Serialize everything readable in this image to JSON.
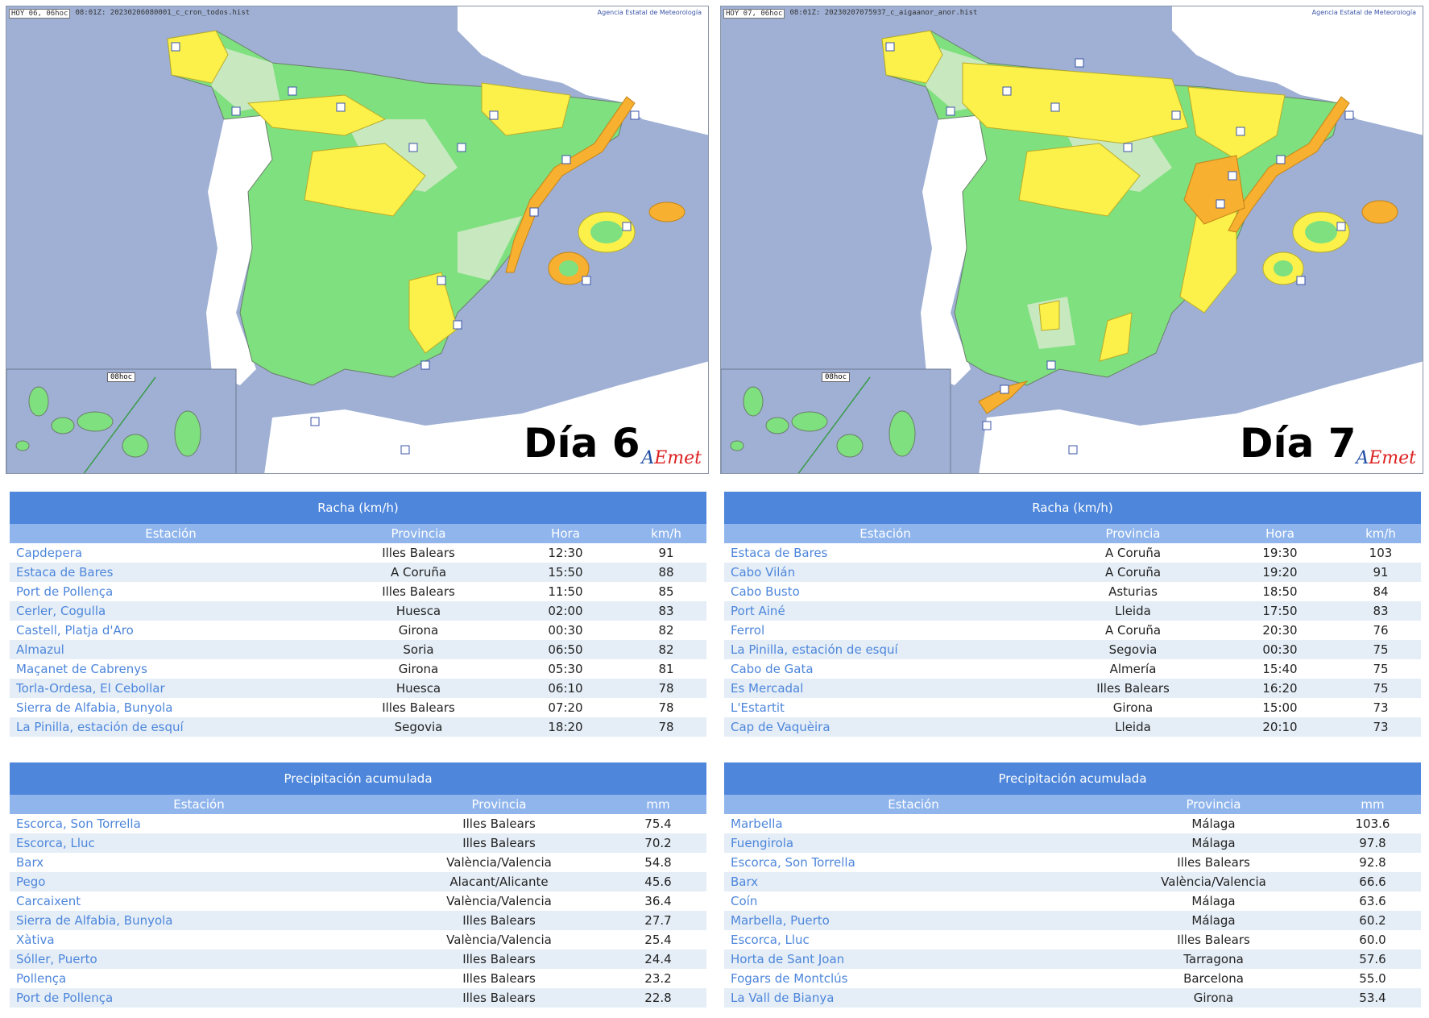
{
  "maps": [
    {
      "header_tag": "HOY 06, 06hoc",
      "header_file": "08:01Z: 20230206080001_c_cron_todos.hist",
      "agency": "Agencia Estatal de Meteorología",
      "canarias_label": "08hoc",
      "day": "Día 6",
      "logo_a": "A",
      "logo_em": "Emet"
    },
    {
      "header_tag": "HOY 07, 06hoc",
      "header_file": "08:01Z: 20230207075937_c_aigaanor_anor.hist",
      "agency": "Agencia Estatal de Meteorología",
      "canarias_label": "08hoc",
      "day": "Día 7",
      "logo_a": "A",
      "logo_em": "Emet"
    }
  ],
  "colors": {
    "sea": "#9fb0d4",
    "land_other": "#ffffff",
    "green": "#7fe07f",
    "light_green": "#c8e8c0",
    "yellow": "#fcf04a",
    "orange": "#f7b02f",
    "header_blue": "#4d86db",
    "subheader_blue": "#8fb5ec",
    "link_blue": "#4d86db"
  },
  "gust_left": {
    "title": "Racha (km/h)",
    "headers": [
      "Estación",
      "Provincia",
      "Hora",
      "km/h"
    ],
    "rows": [
      [
        "Capdepera",
        "Illes Balears",
        "12:30",
        "91"
      ],
      [
        "Estaca de Bares",
        "A Coruña",
        "15:50",
        "88"
      ],
      [
        "Port de Pollença",
        "Illes Balears",
        "11:50",
        "85"
      ],
      [
        "Cerler, Cogulla",
        "Huesca",
        "02:00",
        "83"
      ],
      [
        "Castell, Platja d'Aro",
        "Girona",
        "00:30",
        "82"
      ],
      [
        "Almazul",
        "Soria",
        "06:50",
        "82"
      ],
      [
        "Maçanet de Cabrenys",
        "Girona",
        "05:30",
        "81"
      ],
      [
        "Torla-Ordesa, El Cebollar",
        "Huesca",
        "06:10",
        "78"
      ],
      [
        "Sierra de Alfabia, Bunyola",
        "Illes Balears",
        "07:20",
        "78"
      ],
      [
        "La Pinilla, estación de esquí",
        "Segovia",
        "18:20",
        "78"
      ]
    ]
  },
  "gust_right": {
    "title": "Racha (km/h)",
    "headers": [
      "Estación",
      "Provincia",
      "Hora",
      "km/h"
    ],
    "rows": [
      [
        "Estaca de Bares",
        "A Coruña",
        "19:30",
        "103"
      ],
      [
        "Cabo Vilán",
        "A Coruña",
        "19:20",
        "91"
      ],
      [
        "Cabo Busto",
        "Asturias",
        "18:50",
        "84"
      ],
      [
        "Port Ainé",
        "Lleida",
        "17:50",
        "83"
      ],
      [
        "Ferrol",
        "A Coruña",
        "20:30",
        "76"
      ],
      [
        "La Pinilla, estación de esquí",
        "Segovia",
        "00:30",
        "75"
      ],
      [
        "Cabo de Gata",
        "Almería",
        "15:40",
        "75"
      ],
      [
        "Es Mercadal",
        "Illes Balears",
        "16:20",
        "75"
      ],
      [
        "L'Estartit",
        "Girona",
        "15:00",
        "73"
      ],
      [
        "Cap de Vaquèira",
        "Lleida",
        "20:10",
        "73"
      ]
    ]
  },
  "precip_left": {
    "title": "Precipitación acumulada",
    "headers": [
      "Estación",
      "Provincia",
      "mm"
    ],
    "rows": [
      [
        "Escorca, Son Torrella",
        "Illes Balears",
        "75.4"
      ],
      [
        "Escorca, Lluc",
        "Illes Balears",
        "70.2"
      ],
      [
        "Barx",
        "València/Valencia",
        "54.8"
      ],
      [
        "Pego",
        "Alacant/Alicante",
        "45.6"
      ],
      [
        "Carcaixent",
        "València/Valencia",
        "36.4"
      ],
      [
        "Sierra de Alfabia, Bunyola",
        "Illes Balears",
        "27.7"
      ],
      [
        "Xàtiva",
        "València/Valencia",
        "25.4"
      ],
      [
        "Sóller, Puerto",
        "Illes Balears",
        "24.4"
      ],
      [
        "Pollença",
        "Illes Balears",
        "23.2"
      ],
      [
        "Port de Pollença",
        "Illes Balears",
        "22.8"
      ]
    ]
  },
  "precip_right": {
    "title": "Precipitación acumulada",
    "headers": [
      "Estación",
      "Provincia",
      "mm"
    ],
    "rows": [
      [
        "Marbella",
        "Málaga",
        "103.6"
      ],
      [
        "Fuengirola",
        "Málaga",
        "97.8"
      ],
      [
        "Escorca, Son Torrella",
        "Illes Balears",
        "92.8"
      ],
      [
        "Barx",
        "València/Valencia",
        "66.6"
      ],
      [
        "Coín",
        "Málaga",
        "63.6"
      ],
      [
        "Marbella, Puerto",
        "Málaga",
        "60.2"
      ],
      [
        "Escorca, Lluc",
        "Illes Balears",
        "60.0"
      ],
      [
        "Horta de Sant Joan",
        "Tarragona",
        "57.6"
      ],
      [
        "Fogars de Montclús",
        "Barcelona",
        "55.0"
      ],
      [
        "La Vall de Bianya",
        "Girona",
        "53.4"
      ]
    ]
  }
}
